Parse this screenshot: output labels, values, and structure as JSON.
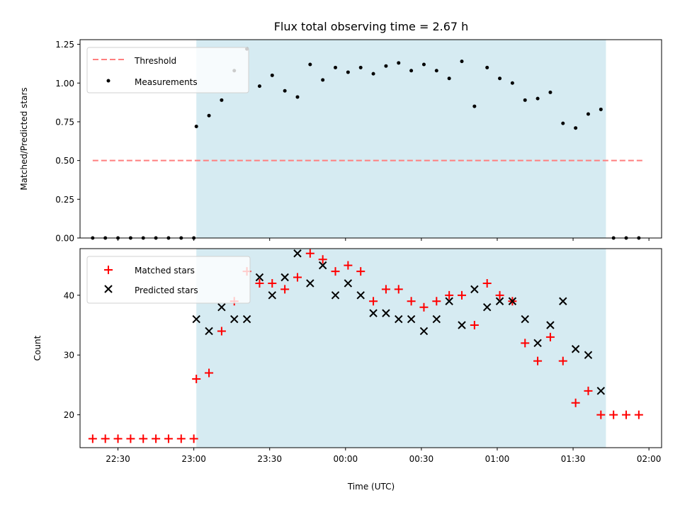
{
  "chart_data": [
    {
      "type": "scatter",
      "title": "Flux total observing time = 2.67 h",
      "ylabel": "Matched/Predicted stars",
      "xlim": [
        "22:15",
        "02:05"
      ],
      "ylim": [
        0,
        1.28
      ],
      "yticks": [
        "0.00",
        "0.25",
        "0.50",
        "0.75",
        "1.00",
        "1.25"
      ],
      "ytick_values": [
        0,
        0.25,
        0.5,
        0.75,
        1.0,
        1.25
      ],
      "shaded_span": [
        "23:01",
        "01:43"
      ],
      "legend_position": "upper-left",
      "series": [
        {
          "name": "Threshold",
          "kind": "dashed-line",
          "color": "#ff7f7f",
          "x": [
            "22:20",
            "01:58"
          ],
          "y": [
            0.5,
            0.5
          ]
        },
        {
          "name": "Measurements",
          "kind": "point",
          "color": "#000000",
          "x": [
            "22:20",
            "22:25",
            "22:30",
            "22:35",
            "22:40",
            "22:45",
            "22:50",
            "22:55",
            "23:00",
            "23:01",
            "23:06",
            "23:11",
            "23:16",
            "23:21",
            "23:26",
            "23:31",
            "23:36",
            "23:41",
            "23:46",
            "23:51",
            "23:56",
            "00:01",
            "00:06",
            "00:11",
            "00:16",
            "00:21",
            "00:26",
            "00:31",
            "00:36",
            "00:41",
            "00:46",
            "00:51",
            "00:56",
            "01:01",
            "01:06",
            "01:11",
            "01:16",
            "01:21",
            "01:26",
            "01:31",
            "01:36",
            "01:41",
            "01:46",
            "01:51",
            "01:56"
          ],
          "y": [
            0,
            0,
            0,
            0,
            0,
            0,
            0,
            0,
            0,
            0.72,
            0.79,
            0.89,
            1.08,
            1.22,
            0.98,
            1.05,
            0.95,
            0.91,
            1.12,
            1.02,
            1.1,
            1.07,
            1.1,
            1.06,
            1.11,
            1.13,
            1.08,
            1.12,
            1.08,
            1.03,
            1.14,
            0.85,
            1.1,
            1.03,
            1.0,
            0.89,
            0.9,
            0.94,
            0.74,
            0.71,
            0.8,
            0.83,
            0,
            0,
            0
          ]
        }
      ]
    },
    {
      "type": "scatter",
      "xlabel": "Time (UTC)",
      "ylabel": "Count",
      "xlim": [
        "22:15",
        "02:05"
      ],
      "ylim": [
        14.5,
        47.8
      ],
      "xticks": [
        "22:30",
        "23:00",
        "23:30",
        "00:00",
        "00:30",
        "01:00",
        "01:30",
        "02:00"
      ],
      "yticks": [
        "20",
        "30",
        "40"
      ],
      "ytick_values": [
        20,
        30,
        40
      ],
      "shaded_span": [
        "23:01",
        "01:43"
      ],
      "legend_position": "upper-left",
      "series": [
        {
          "name": "Matched stars",
          "kind": "plus",
          "color": "#ff0000",
          "x": [
            "22:20",
            "22:25",
            "22:30",
            "22:35",
            "22:40",
            "22:45",
            "22:50",
            "22:55",
            "23:00",
            "23:01",
            "23:06",
            "23:11",
            "23:16",
            "23:21",
            "23:26",
            "23:31",
            "23:36",
            "23:41",
            "23:46",
            "23:51",
            "23:56",
            "00:01",
            "00:06",
            "00:11",
            "00:16",
            "00:21",
            "00:26",
            "00:31",
            "00:36",
            "00:41",
            "00:46",
            "00:51",
            "00:56",
            "01:01",
            "01:06",
            "01:11",
            "01:16",
            "01:21",
            "01:26",
            "01:31",
            "01:36",
            "01:41",
            "01:46",
            "01:51",
            "01:56"
          ],
          "y": [
            16,
            16,
            16,
            16,
            16,
            16,
            16,
            16,
            16,
            26,
            27,
            34,
            39,
            44,
            42,
            42,
            41,
            43,
            47,
            46,
            44,
            45,
            44,
            39,
            41,
            41,
            39,
            38,
            39,
            40,
            40,
            35,
            42,
            40,
            39,
            32,
            29,
            33,
            29,
            22,
            24,
            20,
            20,
            20,
            20
          ]
        },
        {
          "name": "Predicted stars",
          "kind": "cross",
          "color": "#000000",
          "x": [
            "23:01",
            "23:06",
            "23:11",
            "23:16",
            "23:21",
            "23:26",
            "23:31",
            "23:36",
            "23:41",
            "23:46",
            "23:51",
            "23:56",
            "00:01",
            "00:06",
            "00:11",
            "00:16",
            "00:21",
            "00:26",
            "00:31",
            "00:36",
            "00:41",
            "00:46",
            "00:51",
            "00:56",
            "01:01",
            "01:06",
            "01:11",
            "01:16",
            "01:21",
            "01:26",
            "01:31",
            "01:36",
            "01:41"
          ],
          "y": [
            36,
            34,
            38,
            36,
            36,
            43,
            40,
            43,
            47,
            42,
            45,
            40,
            42,
            40,
            37,
            37,
            36,
            36,
            34,
            36,
            39,
            35,
            41,
            38,
            39,
            39,
            36,
            32,
            35,
            39,
            31,
            30,
            24
          ]
        }
      ]
    }
  ]
}
